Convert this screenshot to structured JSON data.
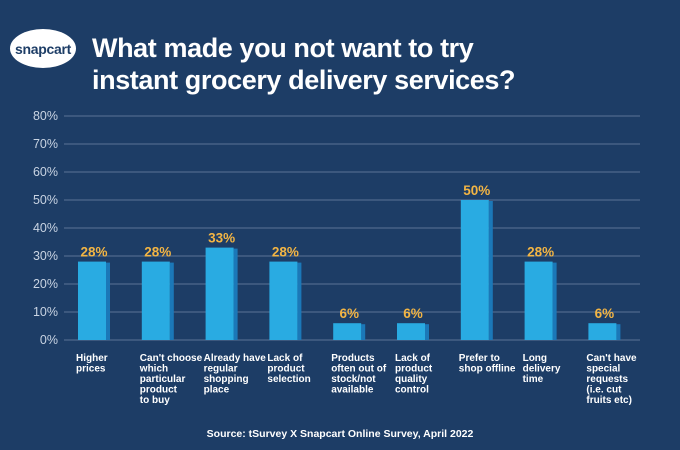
{
  "brand": {
    "logo_text": "snapcart"
  },
  "header": {
    "title_line1": "What made you not want to try",
    "title_line2": "instant grocery delivery services?"
  },
  "source": "Source: tSurvey X Snapcart Online Survey, April 2022",
  "colors": {
    "background": "#1d3d66",
    "bar": "#29abe2",
    "bar_shadow": "#1b78b8",
    "value_label": "#f3b544",
    "grid": "#5a7396",
    "text": "#ffffff"
  },
  "chart_data": {
    "type": "bar",
    "title": "What made you not want to try instant grocery delivery services?",
    "xlabel": "",
    "ylabel": "",
    "ylim": [
      0,
      80
    ],
    "yticks": [
      "0%",
      "10%",
      "20%",
      "30%",
      "40%",
      "50%",
      "60%",
      "70%",
      "80%"
    ],
    "grid": true,
    "categories": [
      [
        "Higher",
        "prices"
      ],
      [
        "Can't choose",
        "which",
        "particular",
        "product",
        "to buy"
      ],
      [
        "Already have",
        "regular",
        "shopping",
        "place"
      ],
      [
        "Lack of",
        "product",
        "selection"
      ],
      [
        "Products",
        "often out of",
        "stock/not",
        "available"
      ],
      [
        "Lack of",
        "product",
        "quality",
        "control"
      ],
      [
        "Prefer to",
        "shop offline"
      ],
      [
        "Long",
        "delivery",
        "time"
      ],
      [
        "Can't have",
        "special",
        "requests",
        "(i.e. cut",
        "fruits etc)"
      ]
    ],
    "values": [
      28,
      28,
      33,
      28,
      6,
      6,
      50,
      28,
      6
    ],
    "value_labels": [
      "28%",
      "28%",
      "33%",
      "28%",
      "6%",
      "6%",
      "50%",
      "28%",
      "6%"
    ]
  }
}
